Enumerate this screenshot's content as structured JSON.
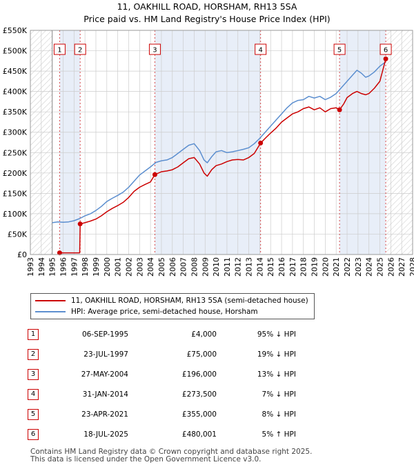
{
  "title_line1": "11, OAKHILL ROAD, HORSHAM, RH13 5SA",
  "title_line2": "Price paid vs. HM Land Registry's House Price Index (HPI)",
  "legend": {
    "property_label": "11, OAKHILL ROAD, HORSHAM, RH13 5SA (semi-detached house)",
    "hpi_label": "HPI: Average price, semi-detached house, Horsham"
  },
  "colors": {
    "property": "#cc0000",
    "hpi": "#5b8ecf",
    "shade": "#e8eef8",
    "grid": "#cccccc"
  },
  "sales_table": [
    {
      "num": "1",
      "date": "06-SEP-1995",
      "price": "£4,000",
      "hpi": "95% ↓ HPI"
    },
    {
      "num": "2",
      "date": "23-JUL-1997",
      "price": "£75,000",
      "hpi": "19% ↓ HPI"
    },
    {
      "num": "3",
      "date": "27-MAY-2004",
      "price": "£196,000",
      "hpi": "13% ↓ HPI"
    },
    {
      "num": "4",
      "date": "31-JAN-2014",
      "price": "£273,500",
      "hpi": "7% ↓ HPI"
    },
    {
      "num": "5",
      "date": "23-APR-2021",
      "price": "£355,000",
      "hpi": "8% ↓ HPI"
    },
    {
      "num": "6",
      "date": "18-JUL-2025",
      "price": "£480,001",
      "hpi": "5% ↑ HPI"
    }
  ],
  "footer_line1": "Contains HM Land Registry data © Crown copyright and database right 2025.",
  "footer_line2": "This data is licensed under the Open Government Licence v3.0.",
  "chart_data": {
    "type": "line",
    "xlim": [
      1993,
      2028
    ],
    "ylim": [
      0,
      550000
    ],
    "x_ticks": [
      1993,
      1994,
      1995,
      1996,
      1997,
      1998,
      1999,
      2000,
      2001,
      2002,
      2003,
      2004,
      2005,
      2006,
      2007,
      2008,
      2009,
      2010,
      2011,
      2012,
      2013,
      2014,
      2015,
      2016,
      2017,
      2018,
      2019,
      2020,
      2021,
      2022,
      2023,
      2024,
      2025,
      2026,
      2027,
      2028
    ],
    "y_ticks": [
      {
        "value": 0,
        "label": "£0"
      },
      {
        "value": 50000,
        "label": "£50K"
      },
      {
        "value": 100000,
        "label": "£100K"
      },
      {
        "value": 150000,
        "label": "£150K"
      },
      {
        "value": 200000,
        "label": "£200K"
      },
      {
        "value": 250000,
        "label": "£250K"
      },
      {
        "value": 300000,
        "label": "£300K"
      },
      {
        "value": 350000,
        "label": "£350K"
      },
      {
        "value": 400000,
        "label": "£400K"
      },
      {
        "value": 450000,
        "label": "£450K"
      },
      {
        "value": 500000,
        "label": "£500K"
      },
      {
        "value": 550000,
        "label": "£550K"
      }
    ],
    "data_start": 1995.0,
    "data_end": 2025.6,
    "sales": [
      {
        "label": "1",
        "x": 1995.68,
        "y": 4000
      },
      {
        "label": "2",
        "x": 1997.56,
        "y": 75000
      },
      {
        "label": "3",
        "x": 2004.4,
        "y": 196000
      },
      {
        "label": "4",
        "x": 2014.08,
        "y": 273500
      },
      {
        "label": "5",
        "x": 2021.31,
        "y": 355000
      },
      {
        "label": "6",
        "x": 2025.54,
        "y": 480001
      }
    ],
    "series": [
      {
        "name": "HPI: Average price, semi-detached house, Horsham",
        "points": [
          [
            1995.0,
            78000
          ],
          [
            1995.5,
            80000
          ],
          [
            1996,
            79000
          ],
          [
            1996.5,
            80000
          ],
          [
            1997,
            83000
          ],
          [
            1997.5,
            88000
          ],
          [
            1998,
            95000
          ],
          [
            1998.5,
            100000
          ],
          [
            1999,
            108000
          ],
          [
            1999.5,
            118000
          ],
          [
            2000,
            130000
          ],
          [
            2000.5,
            138000
          ],
          [
            2001,
            145000
          ],
          [
            2001.5,
            153000
          ],
          [
            2002,
            165000
          ],
          [
            2002.5,
            180000
          ],
          [
            2003,
            195000
          ],
          [
            2003.5,
            205000
          ],
          [
            2004,
            215000
          ],
          [
            2004.5,
            226000
          ],
          [
            2005,
            230000
          ],
          [
            2005.5,
            232000
          ],
          [
            2006,
            238000
          ],
          [
            2006.5,
            248000
          ],
          [
            2007,
            258000
          ],
          [
            2007.5,
            268000
          ],
          [
            2008,
            272000
          ],
          [
            2008.5,
            255000
          ],
          [
            2008.9,
            232000
          ],
          [
            2009.2,
            225000
          ],
          [
            2009.6,
            240000
          ],
          [
            2010,
            252000
          ],
          [
            2010.5,
            255000
          ],
          [
            2011,
            250000
          ],
          [
            2011.5,
            252000
          ],
          [
            2012,
            255000
          ],
          [
            2012.5,
            258000
          ],
          [
            2013,
            262000
          ],
          [
            2013.5,
            272000
          ],
          [
            2014,
            285000
          ],
          [
            2014.5,
            300000
          ],
          [
            2015,
            315000
          ],
          [
            2015.5,
            330000
          ],
          [
            2016,
            345000
          ],
          [
            2016.5,
            360000
          ],
          [
            2017,
            372000
          ],
          [
            2017.5,
            378000
          ],
          [
            2018,
            380000
          ],
          [
            2018.5,
            388000
          ],
          [
            2019,
            384000
          ],
          [
            2019.5,
            388000
          ],
          [
            2020,
            380000
          ],
          [
            2020.5,
            386000
          ],
          [
            2021,
            395000
          ],
          [
            2021.5,
            410000
          ],
          [
            2022,
            425000
          ],
          [
            2022.5,
            440000
          ],
          [
            2022.9,
            452000
          ],
          [
            2023.3,
            445000
          ],
          [
            2023.7,
            435000
          ],
          [
            2024,
            438000
          ],
          [
            2024.5,
            448000
          ],
          [
            2025,
            462000
          ],
          [
            2025.5,
            472000
          ]
        ]
      },
      {
        "name": "11, OAKHILL ROAD, HORSHAM, RH13 5SA (semi-detached house)",
        "points": [
          [
            1995.68,
            4000
          ],
          [
            1996,
            4000
          ],
          [
            1997,
            4000
          ],
          [
            1997.52,
            4000
          ],
          [
            1997.56,
            75000
          ],
          [
            1998,
            78000
          ],
          [
            1998.5,
            82000
          ],
          [
            1999,
            87000
          ],
          [
            1999.5,
            95000
          ],
          [
            2000,
            105000
          ],
          [
            2000.5,
            113000
          ],
          [
            2001,
            120000
          ],
          [
            2001.5,
            128000
          ],
          [
            2002,
            140000
          ],
          [
            2002.5,
            155000
          ],
          [
            2003,
            165000
          ],
          [
            2003.5,
            172000
          ],
          [
            2004,
            178000
          ],
          [
            2004.4,
            196000
          ],
          [
            2005,
            203000
          ],
          [
            2005.5,
            205000
          ],
          [
            2006,
            208000
          ],
          [
            2006.5,
            215000
          ],
          [
            2007,
            225000
          ],
          [
            2007.5,
            235000
          ],
          [
            2008,
            238000
          ],
          [
            2008.5,
            222000
          ],
          [
            2008.9,
            200000
          ],
          [
            2009.2,
            192000
          ],
          [
            2009.6,
            208000
          ],
          [
            2010,
            218000
          ],
          [
            2010.5,
            222000
          ],
          [
            2011,
            228000
          ],
          [
            2011.5,
            232000
          ],
          [
            2012,
            233000
          ],
          [
            2012.5,
            232000
          ],
          [
            2013,
            238000
          ],
          [
            2013.5,
            248000
          ],
          [
            2014.08,
            273500
          ],
          [
            2014.5,
            285000
          ],
          [
            2015,
            298000
          ],
          [
            2015.5,
            310000
          ],
          [
            2016,
            325000
          ],
          [
            2016.5,
            335000
          ],
          [
            2017,
            345000
          ],
          [
            2017.5,
            350000
          ],
          [
            2018,
            358000
          ],
          [
            2018.5,
            362000
          ],
          [
            2019,
            355000
          ],
          [
            2019.5,
            360000
          ],
          [
            2020,
            350000
          ],
          [
            2020.5,
            358000
          ],
          [
            2021,
            360000
          ],
          [
            2021.31,
            355000
          ],
          [
            2021.7,
            370000
          ],
          [
            2022,
            385000
          ],
          [
            2022.5,
            395000
          ],
          [
            2022.9,
            400000
          ],
          [
            2023.3,
            395000
          ],
          [
            2023.7,
            392000
          ],
          [
            2024,
            395000
          ],
          [
            2024.5,
            408000
          ],
          [
            2025,
            425000
          ],
          [
            2025.54,
            480001
          ]
        ]
      }
    ]
  }
}
